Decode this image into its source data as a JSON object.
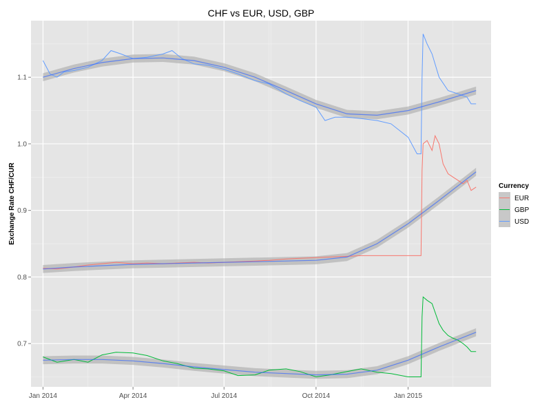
{
  "chart_data": {
    "type": "line",
    "title": "CHF vs EUR, USD, GBP",
    "xlabel": "",
    "ylabel": "Exchange Rate CHF/CUR",
    "x_ticks": [
      "Jan 2014",
      "Apr 2014",
      "Jul 2014",
      "Oct 2014",
      "Jan 2015"
    ],
    "x_range": [
      "2013-12-20",
      "2015-03-25"
    ],
    "ylim": [
      0.635,
      1.185
    ],
    "y_ticks": [
      0.7,
      0.8,
      0.9,
      1.0,
      1.1
    ],
    "y_tick_labels": [
      "0.7",
      "0.8",
      "0.9",
      "1.0",
      "1.1"
    ],
    "grid": true,
    "legend": {
      "title": "Currency",
      "position": "right",
      "entries": [
        "EUR",
        "GBP",
        "USD"
      ]
    },
    "colors": {
      "EUR": "#F8766D",
      "GBP": "#00BA38",
      "USD": "#619CFF",
      "smooth": "#3366FF",
      "band": "#a9a9a9",
      "panel": "#E5E5E5"
    },
    "series": [
      {
        "name": "EUR",
        "points": [
          [
            "2014-01-01",
            0.813
          ],
          [
            "2014-01-15",
            0.812
          ],
          [
            "2014-02-01",
            0.815
          ],
          [
            "2014-02-15",
            0.818
          ],
          [
            "2014-03-01",
            0.82
          ],
          [
            "2014-03-15",
            0.822
          ],
          [
            "2014-04-01",
            0.82
          ],
          [
            "2014-04-15",
            0.821
          ],
          [
            "2014-05-01",
            0.82
          ],
          [
            "2014-05-15",
            0.821
          ],
          [
            "2014-06-01",
            0.822
          ],
          [
            "2014-06-15",
            0.821
          ],
          [
            "2014-07-01",
            0.822
          ],
          [
            "2014-07-15",
            0.823
          ],
          [
            "2014-08-01",
            0.824
          ],
          [
            "2014-08-15",
            0.825
          ],
          [
            "2014-09-01",
            0.827
          ],
          [
            "2014-09-15",
            0.828
          ],
          [
            "2014-10-01",
            0.829
          ],
          [
            "2014-10-15",
            0.83
          ],
          [
            "2014-11-01",
            0.831
          ],
          [
            "2014-11-15",
            0.832
          ],
          [
            "2014-12-01",
            0.832
          ],
          [
            "2014-12-15",
            0.832
          ],
          [
            "2015-01-01",
            0.832
          ],
          [
            "2015-01-14",
            0.832
          ],
          [
            "2015-01-15",
            0.96
          ],
          [
            "2015-01-16",
            1.0
          ],
          [
            "2015-01-20",
            1.005
          ],
          [
            "2015-01-25",
            0.99
          ],
          [
            "2015-01-28",
            1.012
          ],
          [
            "2015-02-01",
            1.0
          ],
          [
            "2015-02-05",
            0.97
          ],
          [
            "2015-02-10",
            0.955
          ],
          [
            "2015-02-15",
            0.95
          ],
          [
            "2015-02-20",
            0.945
          ],
          [
            "2015-02-25",
            0.94
          ],
          [
            "2015-03-01",
            0.945
          ],
          [
            "2015-03-05",
            0.93
          ],
          [
            "2015-03-10",
            0.935
          ]
        ]
      },
      {
        "name": "GBP",
        "points": [
          [
            "2014-01-01",
            0.68
          ],
          [
            "2014-01-15",
            0.672
          ],
          [
            "2014-02-01",
            0.676
          ],
          [
            "2014-02-15",
            0.672
          ],
          [
            "2014-03-01",
            0.683
          ],
          [
            "2014-03-15",
            0.687
          ],
          [
            "2014-04-01",
            0.686
          ],
          [
            "2014-04-15",
            0.682
          ],
          [
            "2014-05-01",
            0.674
          ],
          [
            "2014-05-15",
            0.67
          ],
          [
            "2014-06-01",
            0.663
          ],
          [
            "2014-06-15",
            0.662
          ],
          [
            "2014-07-01",
            0.659
          ],
          [
            "2014-07-15",
            0.652
          ],
          [
            "2014-08-01",
            0.653
          ],
          [
            "2014-08-15",
            0.66
          ],
          [
            "2014-09-01",
            0.662
          ],
          [
            "2014-09-15",
            0.658
          ],
          [
            "2014-10-01",
            0.65
          ],
          [
            "2014-10-15",
            0.653
          ],
          [
            "2014-11-01",
            0.658
          ],
          [
            "2014-11-15",
            0.662
          ],
          [
            "2014-12-01",
            0.657
          ],
          [
            "2014-12-15",
            0.655
          ],
          [
            "2015-01-01",
            0.65
          ],
          [
            "2015-01-14",
            0.65
          ],
          [
            "2015-01-15",
            0.74
          ],
          [
            "2015-01-16",
            0.77
          ],
          [
            "2015-01-20",
            0.765
          ],
          [
            "2015-01-25",
            0.76
          ],
          [
            "2015-02-01",
            0.73
          ],
          [
            "2015-02-05",
            0.72
          ],
          [
            "2015-02-10",
            0.712
          ],
          [
            "2015-02-15",
            0.708
          ],
          [
            "2015-02-20",
            0.705
          ],
          [
            "2015-02-25",
            0.7
          ],
          [
            "2015-03-01",
            0.695
          ],
          [
            "2015-03-05",
            0.688
          ],
          [
            "2015-03-10",
            0.688
          ]
        ]
      },
      {
        "name": "USD",
        "points": [
          [
            "2014-01-01",
            1.125
          ],
          [
            "2014-01-08",
            1.105
          ],
          [
            "2014-01-15",
            1.1
          ],
          [
            "2014-01-22",
            1.108
          ],
          [
            "2014-02-01",
            1.11
          ],
          [
            "2014-02-15",
            1.115
          ],
          [
            "2014-03-01",
            1.125
          ],
          [
            "2014-03-10",
            1.14
          ],
          [
            "2014-03-20",
            1.135
          ],
          [
            "2014-04-01",
            1.128
          ],
          [
            "2014-04-15",
            1.13
          ],
          [
            "2014-05-01",
            1.135
          ],
          [
            "2014-05-10",
            1.14
          ],
          [
            "2014-05-20",
            1.128
          ],
          [
            "2014-06-01",
            1.12
          ],
          [
            "2014-06-15",
            1.118
          ],
          [
            "2014-07-01",
            1.112
          ],
          [
            "2014-07-15",
            1.105
          ],
          [
            "2014-08-01",
            1.095
          ],
          [
            "2014-08-15",
            1.09
          ],
          [
            "2014-09-01",
            1.075
          ],
          [
            "2014-09-15",
            1.065
          ],
          [
            "2014-10-01",
            1.055
          ],
          [
            "2014-10-10",
            1.035
          ],
          [
            "2014-10-20",
            1.04
          ],
          [
            "2014-11-01",
            1.04
          ],
          [
            "2014-11-15",
            1.038
          ],
          [
            "2014-12-01",
            1.035
          ],
          [
            "2014-12-15",
            1.03
          ],
          [
            "2015-01-01",
            1.01
          ],
          [
            "2015-01-10",
            0.985
          ],
          [
            "2015-01-14",
            0.985
          ],
          [
            "2015-01-15",
            1.1
          ],
          [
            "2015-01-16",
            1.165
          ],
          [
            "2015-01-20",
            1.15
          ],
          [
            "2015-01-25",
            1.135
          ],
          [
            "2015-02-01",
            1.1
          ],
          [
            "2015-02-10",
            1.08
          ],
          [
            "2015-02-20",
            1.075
          ],
          [
            "2015-03-01",
            1.07
          ],
          [
            "2015-03-05",
            1.06
          ],
          [
            "2015-03-10",
            1.06
          ]
        ]
      }
    ],
    "smooth": [
      {
        "name": "EUR",
        "points": [
          [
            "2014-01-01",
            0.812
          ],
          [
            "2014-02-01",
            0.815
          ],
          [
            "2014-03-01",
            0.817
          ],
          [
            "2014-04-01",
            0.819
          ],
          [
            "2014-05-01",
            0.82
          ],
          [
            "2014-06-01",
            0.821
          ],
          [
            "2014-07-01",
            0.822
          ],
          [
            "2014-08-01",
            0.823
          ],
          [
            "2014-09-01",
            0.824
          ],
          [
            "2014-10-01",
            0.825
          ],
          [
            "2014-11-01",
            0.83
          ],
          [
            "2014-12-01",
            0.85
          ],
          [
            "2015-01-01",
            0.88
          ],
          [
            "2015-02-01",
            0.915
          ],
          [
            "2015-03-10",
            0.958
          ]
        ]
      },
      {
        "name": "GBP",
        "points": [
          [
            "2014-01-01",
            0.675
          ],
          [
            "2014-02-01",
            0.676
          ],
          [
            "2014-03-01",
            0.676
          ],
          [
            "2014-04-01",
            0.674
          ],
          [
            "2014-05-01",
            0.67
          ],
          [
            "2014-06-01",
            0.665
          ],
          [
            "2014-07-01",
            0.661
          ],
          [
            "2014-08-01",
            0.657
          ],
          [
            "2014-09-01",
            0.655
          ],
          [
            "2014-10-01",
            0.653
          ],
          [
            "2014-11-01",
            0.654
          ],
          [
            "2014-12-01",
            0.66
          ],
          [
            "2015-01-01",
            0.675
          ],
          [
            "2015-02-01",
            0.695
          ],
          [
            "2015-03-10",
            0.717
          ]
        ]
      },
      {
        "name": "USD",
        "points": [
          [
            "2014-01-01",
            1.1
          ],
          [
            "2014-02-01",
            1.113
          ],
          [
            "2014-03-01",
            1.122
          ],
          [
            "2014-04-01",
            1.128
          ],
          [
            "2014-05-01",
            1.129
          ],
          [
            "2014-06-01",
            1.125
          ],
          [
            "2014-07-01",
            1.115
          ],
          [
            "2014-08-01",
            1.1
          ],
          [
            "2014-09-01",
            1.08
          ],
          [
            "2014-10-01",
            1.06
          ],
          [
            "2014-11-01",
            1.045
          ],
          [
            "2014-12-01",
            1.043
          ],
          [
            "2015-01-01",
            1.05
          ],
          [
            "2015-02-01",
            1.063
          ],
          [
            "2015-03-10",
            1.08
          ]
        ]
      }
    ]
  }
}
